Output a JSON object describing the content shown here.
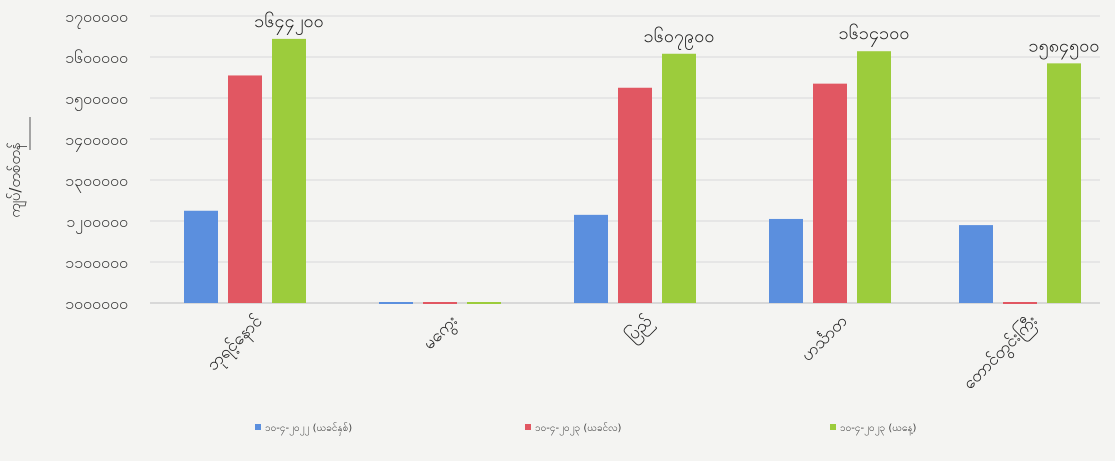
{
  "chart_data": {
    "type": "bar",
    "title": "",
    "xlabel": "",
    "ylabel": "ကျပ်/တစ်တန်",
    "ylim": [
      1000000,
      1900000
    ],
    "y_ticks": [
      1000000,
      1100000,
      1200000,
      1300000,
      1400000,
      1500000,
      1600000,
      1700000
    ],
    "y_tick_labels": [
      "၁၀၀၀၀၀၀",
      "၁၁၀၀၀၀၀",
      "၁၂၀၀၀၀၀",
      "၁၃၀၀၀၀၀",
      "၁၄၀၀၀၀၀",
      "၁၅၀၀၀၀၀",
      "၁၆၀၀၀၀၀",
      "၁၇၀၀၀၀၀"
    ],
    "categories": [
      "ဘုရင့်နောင်",
      "မကွေး",
      "ပြည်",
      "ဟင်္သာတ",
      "တောင်တွင်းကြီး"
    ],
    "grid": true,
    "legend_position": "bottom",
    "series": [
      {
        "name": "၁၀-၄-၂၀၂၂ (ယခင်နှစ်)",
        "color": "#5b8fde",
        "values": [
          1225000,
          1000000,
          1215000,
          1205000,
          1190000
        ]
      },
      {
        "name": "၁၀-၄-၂၀၂၃ (ယခင်လ)",
        "color": "#e15762",
        "values": [
          1555000,
          1000000,
          1525000,
          1535000,
          1000000
        ]
      },
      {
        "name": "၁၀-၄-၂၀၂၃ (ယနေ့)",
        "color": "#9ccc3c",
        "values": [
          1644200,
          1000000,
          1607900,
          1614100,
          1584500
        ]
      }
    ],
    "data_labels": [
      {
        "category_index": 0,
        "series_index": 2,
        "text": "၁၆၄၄၂၀၀"
      },
      {
        "category_index": 2,
        "series_index": 2,
        "text": "၁၆၀၇၉၀၀"
      },
      {
        "category_index": 3,
        "series_index": 2,
        "text": "၁၆၁၄၁၀၀"
      },
      {
        "category_index": 4,
        "series_index": 2,
        "text": "၁၅၈၄၅၀၀"
      }
    ]
  }
}
